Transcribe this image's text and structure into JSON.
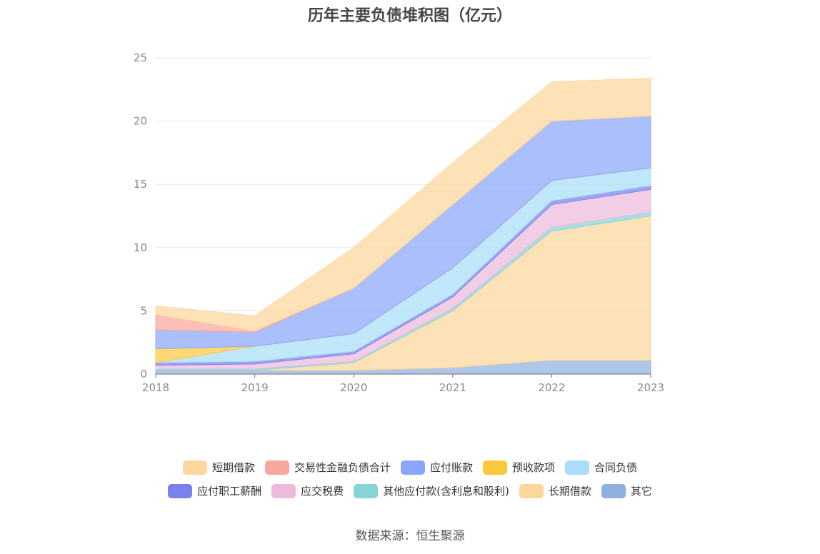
{
  "title": "历年主要负债堆积图（亿元）",
  "source": "数据来源：恒生聚源",
  "chart_data": {
    "type": "area",
    "stacked": true,
    "x": [
      "2018",
      "2019",
      "2020",
      "2021",
      "2022",
      "2023"
    ],
    "ylim": [
      0,
      25
    ],
    "yticks": [
      "0",
      "5",
      "10",
      "15",
      "20",
      "25"
    ],
    "grid": true,
    "legend_position": "bottom",
    "series": [
      {
        "name": "其它",
        "color": "#8fb0de",
        "values": [
          0.3,
          0.3,
          0.3,
          0.5,
          1.1,
          1.1
        ]
      },
      {
        "name": "长期借款",
        "color": "#fcd79b",
        "values": [
          0,
          0,
          0.6,
          4.5,
          10.2,
          11.4
        ]
      },
      {
        "name": "其他应付款(含利息和股利)",
        "color": "#85d4d8",
        "values": [
          0.1,
          0.1,
          0.1,
          0.2,
          0.3,
          0.3
        ]
      },
      {
        "name": "应交税费",
        "color": "#ebbadc",
        "values": [
          0.3,
          0.4,
          0.6,
          0.9,
          1.8,
          1.8
        ]
      },
      {
        "name": "应付职工薪酬",
        "color": "#7a80ef",
        "values": [
          0.2,
          0.2,
          0.2,
          0.2,
          0.3,
          0.3
        ]
      },
      {
        "name": "合同负债",
        "color": "#a9defa",
        "values": [
          0,
          1.2,
          1.4,
          2.1,
          1.6,
          1.4
        ]
      },
      {
        "name": "预收款项",
        "color": "#fcc93e",
        "values": [
          1.1,
          0,
          0,
          0,
          0,
          0
        ]
      },
      {
        "name": "应付账款",
        "color": "#8aa6fc",
        "values": [
          1.5,
          1.1,
          3.6,
          5.0,
          4.7,
          4.1
        ]
      },
      {
        "name": "交易性金融负债合计",
        "color": "#f9a69c",
        "values": [
          1.2,
          0.1,
          0,
          0,
          0,
          0
        ]
      },
      {
        "name": "短期借款",
        "color": "#fcd79b",
        "values": [
          0.7,
          1.2,
          3.2,
          3.3,
          3.1,
          3.0
        ]
      }
    ]
  },
  "legend": {
    "row1": [
      {
        "label": "短期借款",
        "color": "#fcd79b"
      },
      {
        "label": "交易性金融负债合计",
        "color": "#f9a69c"
      },
      {
        "label": "应付账款",
        "color": "#8aa6fc"
      },
      {
        "label": "预收款项",
        "color": "#fcc93e"
      },
      {
        "label": "合同负债",
        "color": "#a9defa"
      }
    ],
    "row2": [
      {
        "label": "应付职工薪酬",
        "color": "#7a80ef"
      },
      {
        "label": "应交税费",
        "color": "#ebbadc"
      },
      {
        "label": "其他应付款(含利息和股利)",
        "color": "#85d4d8"
      },
      {
        "label": "长期借款",
        "color": "#fcd79b"
      },
      {
        "label": "其它",
        "color": "#8fb0de"
      }
    ]
  }
}
